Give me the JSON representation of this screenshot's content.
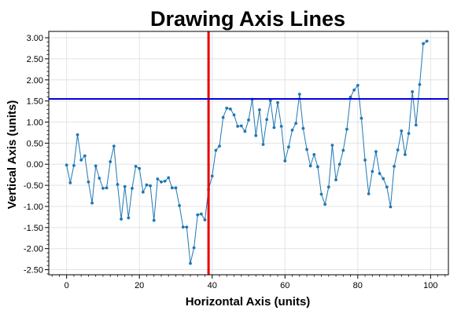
{
  "chart_data": {
    "type": "line",
    "title": "Drawing Axis Lines",
    "xlabel": "Horizontal Axis (units)",
    "ylabel": "Vertical Axis (units)",
    "xlim": [
      -4.9,
      104.9
    ],
    "ylim": [
      -2.62,
      3.15
    ],
    "xticks": [
      0,
      20,
      40,
      60,
      80,
      100
    ],
    "xtick_labels": [
      "0",
      "20",
      "40",
      "60",
      "80",
      "100"
    ],
    "yticks": [
      -2.5,
      -2.0,
      -1.5,
      -1.0,
      -0.5,
      0.0,
      0.5,
      1.0,
      1.5,
      2.0,
      2.5,
      3.0
    ],
    "ytick_labels": [
      "-2.50",
      "-2.00",
      "-1.50",
      "-1.00",
      "-0.50",
      "0.00",
      "0.50",
      "1.00",
      "1.50",
      "2.00",
      "2.50",
      "3.00"
    ],
    "grid": true,
    "series_color": "#1f77b4",
    "series": [
      {
        "x": [
          0,
          1,
          2,
          3,
          4,
          5,
          6,
          7,
          8,
          9,
          10,
          11,
          12,
          13,
          14,
          15,
          16,
          17,
          18,
          19,
          20,
          21,
          22,
          23,
          24,
          25,
          26,
          27,
          28,
          29,
          30,
          31,
          32,
          33,
          34,
          35,
          36,
          37,
          38,
          39,
          40,
          41,
          42,
          43,
          44,
          45,
          46,
          47,
          48,
          49,
          50,
          51,
          52,
          53,
          54,
          55,
          56,
          57,
          58,
          59,
          60,
          61,
          62,
          63,
          64,
          65,
          66,
          67,
          68,
          69,
          70,
          71,
          72,
          73,
          74,
          75,
          76,
          77,
          78,
          79,
          80,
          81,
          82,
          83,
          84,
          85,
          86,
          87,
          88,
          89,
          90,
          91,
          92,
          93,
          94,
          95,
          96,
          97,
          98,
          99
        ],
        "values": [
          -0.02,
          -0.44,
          -0.03,
          0.7,
          0.1,
          0.2,
          -0.42,
          -0.92,
          -0.04,
          -0.33,
          -0.57,
          -0.56,
          0.06,
          0.43,
          -0.48,
          -1.3,
          -0.53,
          -1.27,
          -0.57,
          -0.05,
          -0.1,
          -0.66,
          -0.49,
          -0.51,
          -1.33,
          -0.35,
          -0.42,
          -0.4,
          -0.32,
          -0.56,
          -0.56,
          -0.98,
          -1.49,
          -1.49,
          -2.35,
          -1.98,
          -1.2,
          -1.18,
          -1.32,
          -0.6,
          -0.28,
          0.33,
          0.43,
          1.11,
          1.33,
          1.31,
          1.17,
          0.9,
          0.91,
          0.78,
          1.05,
          1.54,
          0.68,
          1.29,
          0.47,
          1.06,
          1.51,
          0.87,
          1.46,
          0.9,
          0.08,
          0.41,
          0.81,
          0.97,
          1.66,
          0.85,
          0.35,
          -0.04,
          0.23,
          -0.06,
          -0.71,
          -0.95,
          -0.54,
          0.45,
          -0.37,
          0.0,
          0.33,
          0.83,
          1.59,
          1.76,
          1.87,
          1.09,
          0.1,
          -0.7,
          -0.17,
          0.3,
          -0.22,
          -0.34,
          -0.54,
          -1.01,
          -0.05,
          0.34,
          0.79,
          0.23,
          0.73,
          1.72,
          0.93,
          1.89,
          2.86,
          2.92
        ]
      }
    ],
    "reference_lines": [
      {
        "orientation": "vertical",
        "value": 39,
        "color": "#e60000"
      },
      {
        "orientation": "horizontal",
        "value": 1.55,
        "color": "#0000dd"
      }
    ]
  }
}
